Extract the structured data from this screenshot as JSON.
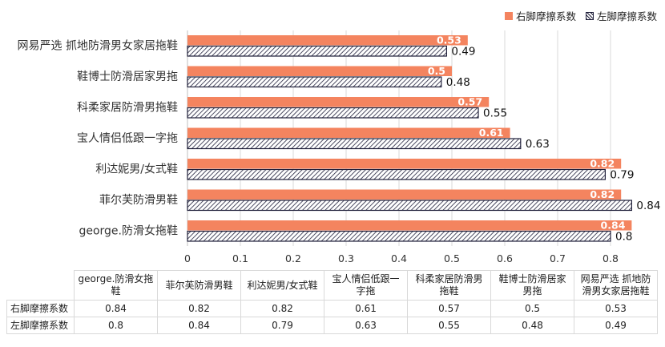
{
  "chart_data": {
    "type": "bar",
    "orientation": "horizontal",
    "categories": [
      "网易严选 抓地防滑男女家居拖鞋",
      "鞋博士防滑居家男拖",
      "科柔家居防滑男拖鞋",
      "宝人情侣低跟一字拖",
      "利达妮男/女式鞋",
      "菲尔芙防滑男鞋",
      "george.防滑女拖鞋"
    ],
    "series": [
      {
        "name": "右脚摩擦系数",
        "values": [
          0.53,
          0.5,
          0.57,
          0.61,
          0.82,
          0.82,
          0.84
        ],
        "color": "#f4845f",
        "pattern": "solid"
      },
      {
        "name": "左脚摩擦系数",
        "values": [
          0.49,
          0.48,
          0.55,
          0.63,
          0.79,
          0.84,
          0.8
        ],
        "color": "#1f1f3a",
        "pattern": "hatch"
      }
    ],
    "x_ticks": [
      "0",
      "0.1",
      "0.2",
      "0.3",
      "0.4",
      "0.5",
      "0.6",
      "0.7",
      "0.8"
    ],
    "xlim": [
      0,
      0.84
    ],
    "grid": true,
    "legend_position": "top-right"
  },
  "table": {
    "columns": [
      "george.防滑女拖鞋",
      "菲尔芙防滑男鞋",
      "利达妮男/女式鞋",
      "宝人情侣低跟一字拖",
      "科柔家居防滑男拖鞋",
      "鞋博士防滑居家男拖",
      "网易严选 抓地防滑男女家居拖鞋"
    ],
    "rows": [
      {
        "label": "右脚摩擦系数",
        "values": [
          "0.84",
          "0.82",
          "0.82",
          "0.61",
          "0.57",
          "0.5",
          "0.53"
        ]
      },
      {
        "label": "左脚摩擦系数",
        "values": [
          "0.8",
          "0.84",
          "0.79",
          "0.63",
          "0.55",
          "0.48",
          "0.49"
        ]
      }
    ]
  }
}
